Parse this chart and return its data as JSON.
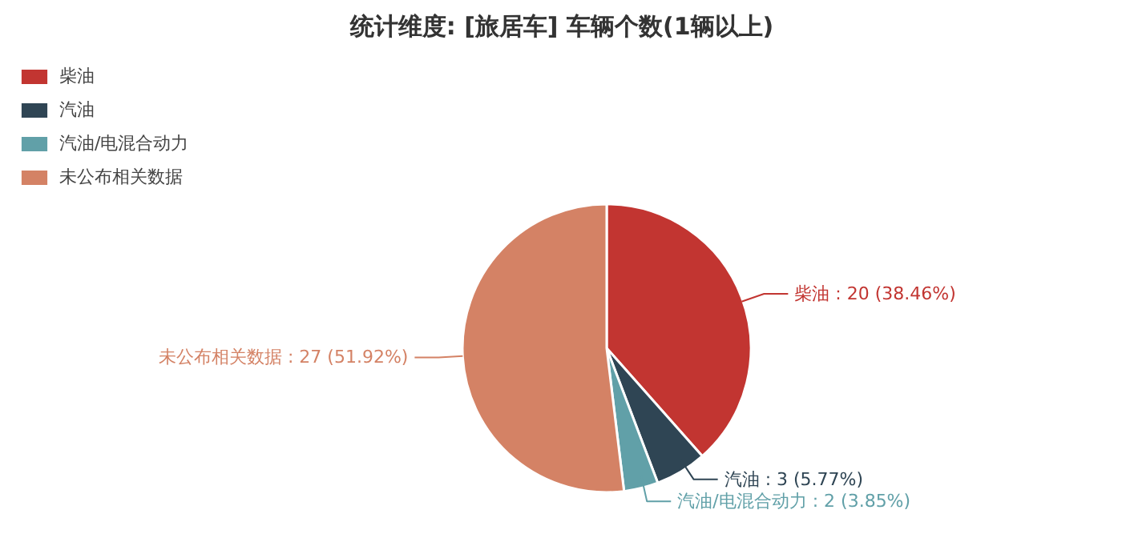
{
  "chart_data": {
    "type": "pie",
    "title": "统计维度: [旅居车] 车辆个数(1辆以上)",
    "categories": [
      "柴油",
      "汽油",
      "汽油/电混合动力",
      "未公布相关数据"
    ],
    "values": [
      20,
      3,
      2,
      27
    ],
    "colors": [
      "#c23531",
      "#2f4554",
      "#61a0a8",
      "#d48265"
    ],
    "value_labels": [
      "柴油 : 20 (38.46%)",
      "汽油 : 3 (5.77%)",
      "汽油/电混合动力 : 2 (3.85%)",
      "未公布相关数据 : 27 (51.92%)"
    ],
    "legend": "top left"
  }
}
